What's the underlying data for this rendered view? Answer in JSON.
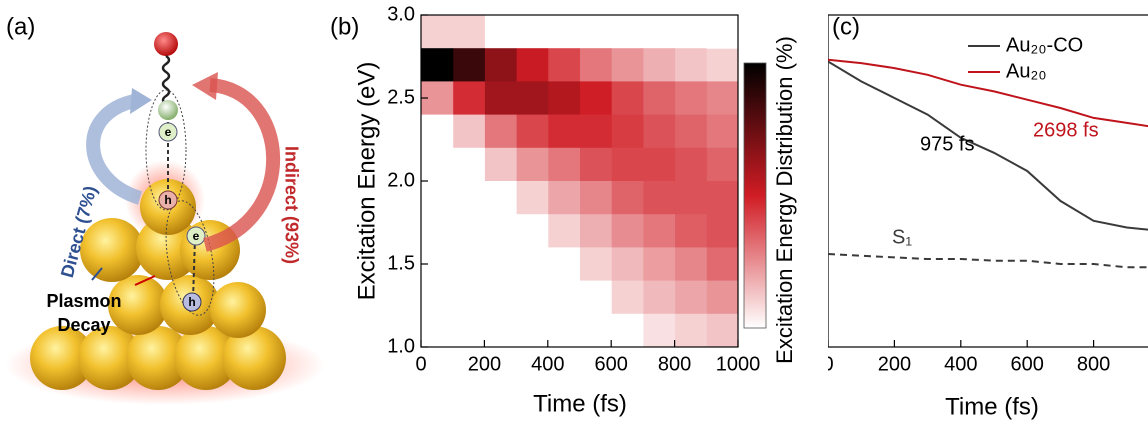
{
  "panel_a": {
    "label": "(a)",
    "direct": "Direct (7%)",
    "indirect": "Indirect (93%)",
    "decay": [
      "Plasmon",
      "Decay"
    ],
    "electron": "e",
    "hole": "h"
  },
  "chart_data": [
    {
      "type": "heatmap",
      "label": "(b)",
      "x_label": "Time (fs)",
      "y_label": "Excitation Energy (eV)",
      "colorbar_label": "Excitation Energy Distribution (%)",
      "colormap": [
        "#ffffff",
        "#d01c24",
        "#000000"
      ],
      "x": [
        0,
        100,
        200,
        300,
        400,
        500,
        600,
        700,
        800,
        900,
        1000
      ],
      "y": [
        1,
        1.2,
        1.4,
        1.6,
        1.8,
        2,
        2.2,
        2.4,
        2.6,
        2.8,
        3
      ],
      "values": [
        [
          0,
          0,
          0,
          0,
          0,
          0,
          0,
          1,
          2,
          3
        ],
        [
          0,
          0,
          0,
          0,
          0,
          0,
          2,
          4,
          6,
          8
        ],
        [
          0,
          0,
          0,
          0,
          0,
          2,
          4,
          7,
          10,
          14
        ],
        [
          0,
          0,
          0,
          0,
          2,
          5,
          9,
          12,
          16,
          18
        ],
        [
          0,
          0,
          0,
          2,
          6,
          10,
          15,
          18,
          18,
          18
        ],
        [
          0,
          0,
          3,
          8,
          12,
          18,
          20,
          20,
          18,
          15
        ],
        [
          0,
          3,
          12,
          20,
          25,
          25,
          22,
          18,
          15,
          12
        ],
        [
          8,
          25,
          40,
          40,
          35,
          28,
          20,
          15,
          12,
          10
        ],
        [
          90,
          70,
          45,
          30,
          20,
          12,
          8,
          5,
          3,
          2
        ],
        [
          2,
          2,
          0,
          0,
          0,
          0,
          0,
          0,
          0,
          0
        ]
      ],
      "xlim": [
        0,
        1000
      ],
      "ylim": [
        1,
        3
      ],
      "xticks": [
        0,
        200,
        400,
        600,
        800,
        1000
      ],
      "yticks": [
        {
          "value": 1,
          "label": "1.0"
        },
        1.5,
        {
          "value": 2,
          "label": "2.0"
        },
        2.5,
        {
          "value": 3,
          "label": "3.0"
        }
      ]
    },
    {
      "type": "line",
      "label": "(c)",
      "x_label": "Time (fs)",
      "x": [
        0,
        100,
        200,
        300,
        400,
        500,
        600,
        700,
        800,
        900,
        1000
      ],
      "series": [
        {
          "name": "Au₂₀-CO",
          "color": "#3a3a3a",
          "dash": false,
          "legend": true,
          "values": [
            2.72,
            2.6,
            2.5,
            2.4,
            2.26,
            2.17,
            2.06,
            1.88,
            1.76,
            1.72,
            1.7
          ]
        },
        {
          "name": "Au₂₀",
          "color": "#c0141c",
          "dash": false,
          "legend": true,
          "values": [
            2.73,
            2.71,
            2.68,
            2.64,
            2.58,
            2.54,
            2.49,
            2.44,
            2.38,
            2.35,
            2.32
          ]
        },
        {
          "name": "S₁",
          "color": "#3a3a3a",
          "dash": true,
          "legend": false,
          "values": [
            1.56,
            1.55,
            1.54,
            1.53,
            1.53,
            1.52,
            1.52,
            1.5,
            1.5,
            1.48,
            1.48
          ]
        }
      ],
      "annotations": [
        {
          "text": "975 fs",
          "color": "#000000"
        },
        {
          "text": "2698 fs",
          "color": "#c0141c"
        }
      ],
      "xlim": [
        0,
        1000
      ],
      "ylim": [
        1,
        3
      ],
      "xticks": [
        0,
        200,
        400,
        600,
        800
      ]
    }
  ]
}
